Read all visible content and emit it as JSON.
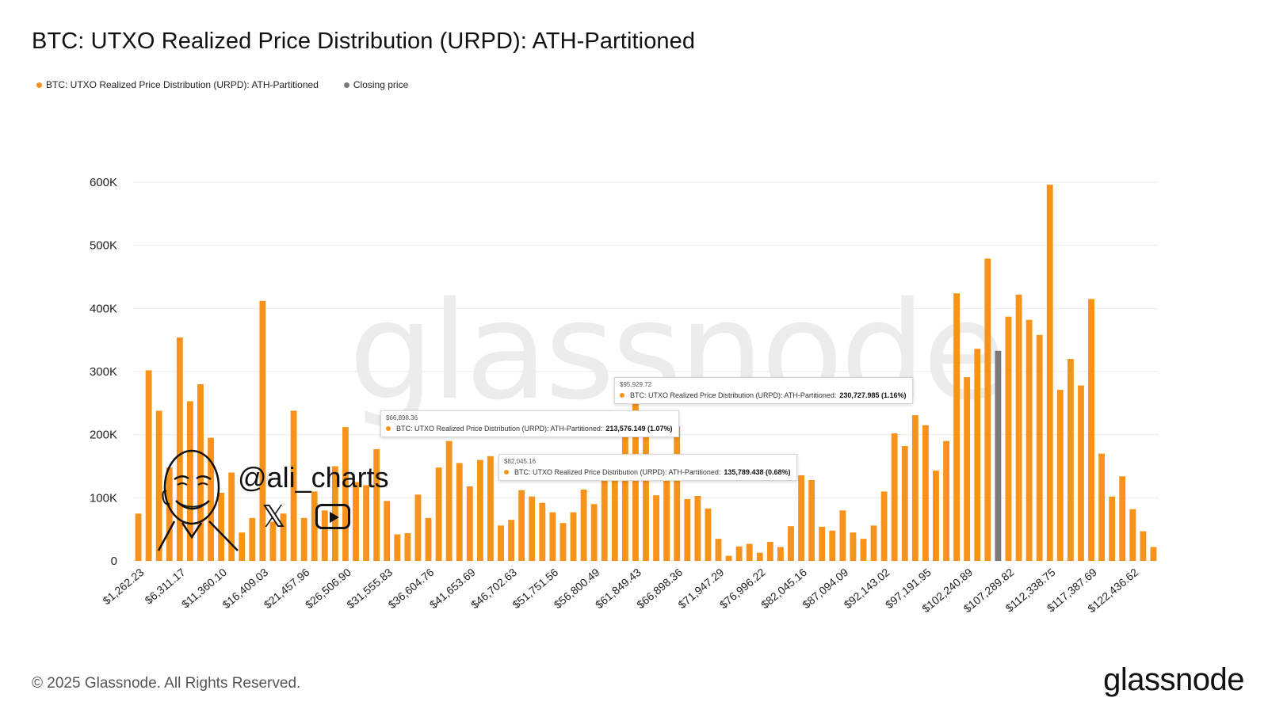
{
  "title": "BTC: UTXO Realized Price Distribution (URPD): ATH-Partitioned",
  "legend": {
    "series_label": "BTC: UTXO Realized Price Distribution (URPD): ATH-Partitioned",
    "closing_label": "Closing price"
  },
  "watermark": "glassnode",
  "footer": {
    "copyright": "© 2025 Glassnode. All Rights Reserved.",
    "logo": "glassnode"
  },
  "overlay": {
    "handle": "@ali_charts",
    "x_icon": "x-icon",
    "youtube_icon": "youtube-icon"
  },
  "tooltips": [
    {
      "price": "$66,898.36",
      "label": "BTC: UTXO Realized Price Distribution (URPD): ATH-Partitioned:",
      "value": "213,576.149 (1.07%)"
    },
    {
      "price": "$95,929.72",
      "label": "BTC: UTXO Realized Price Distribution (URPD): ATH-Partitioned:",
      "value": "230,727.985 (1.16%)"
    },
    {
      "price": "$82,045.16",
      "label": "BTC: UTXO Realized Price Distribution (URPD): ATH-Partitioned:",
      "value": "135,789.438 (0.68%)"
    }
  ],
  "colors": {
    "series": "#f7931a",
    "closing": "#7a7a7a",
    "grid": "#ececec"
  },
  "chart_data": {
    "type": "bar",
    "title": "BTC: UTXO Realized Price Distribution (URPD): ATH-Partitioned",
    "ylim": [
      0,
      600000
    ],
    "yticks": [
      "0",
      "100K",
      "200K",
      "300K",
      "400K",
      "500K",
      "600K"
    ],
    "ytick_values": [
      0,
      100000,
      200000,
      300000,
      400000,
      500000,
      600000
    ],
    "xtick_labels": [
      "$1,262.23",
      "$6,311.17",
      "$11,360.10",
      "$16,409.03",
      "$21,457.96",
      "$26,506.90",
      "$31,555.83",
      "$36,604.76",
      "$41,653.69",
      "$46,702.63",
      "$51,751.56",
      "$56,800.49",
      "$61,849.43",
      "$66,898.36",
      "$71,947.29",
      "$76,996.22",
      "$82,045.16",
      "$87,094.09",
      "$92,143.02",
      "$97,191.95",
      "$102,240.89",
      "$107,289.82",
      "$112,338.75",
      "$117,387.69",
      "$122,436.62"
    ],
    "grid": true,
    "legend": "top-left",
    "closing_price_index": 83,
    "series": [
      {
        "name": "BTC: UTXO Realized Price Distribution (URPD): ATH-Partitioned",
        "values": [
          75000,
          302000,
          238000,
          148000,
          354000,
          253000,
          280000,
          195000,
          108000,
          140000,
          45000,
          68000,
          412000,
          62000,
          75000,
          238000,
          68000,
          110000,
          80000,
          150000,
          212000,
          125000,
          120000,
          177000,
          95000,
          42000,
          44000,
          105000,
          68000,
          148000,
          190000,
          155000,
          118000,
          160000,
          166000,
          56000,
          65000,
          112000,
          102000,
          92000,
          77000,
          60000,
          77000,
          113000,
          90000,
          155000,
          150000,
          215000,
          284000,
          230000,
          104000,
          155000,
          213576,
          98000,
          103000,
          83000,
          35000,
          8000,
          23000,
          27000,
          13000,
          30000,
          22000,
          55000,
          135789,
          128000,
          54000,
          48000,
          80000,
          45000,
          35000,
          56000,
          110000,
          202000,
          182000,
          230728,
          215000,
          143000,
          190000,
          424000,
          291000,
          336000,
          479000,
          333000,
          387000,
          422000,
          382000,
          358000,
          596000,
          271000,
          320000,
          278000,
          415000,
          170000,
          102000,
          134000,
          82000,
          47000,
          22000
        ]
      }
    ]
  }
}
